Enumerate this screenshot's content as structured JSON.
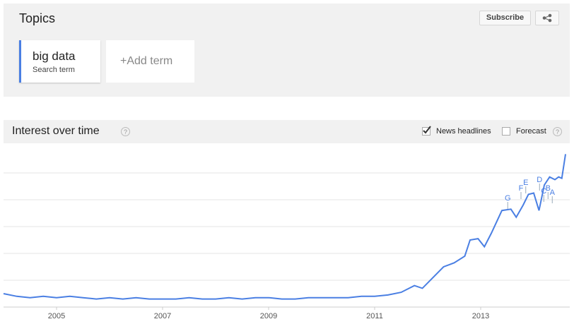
{
  "header": {
    "title": "Topics",
    "subscribe": "Subscribe"
  },
  "terms": [
    {
      "label": "big data",
      "sublabel": "Search term"
    }
  ],
  "add_term": "+Add term",
  "section": {
    "title": "Interest over time",
    "help": "?",
    "news_headlines": {
      "label": "News headlines",
      "checked": true
    },
    "forecast": {
      "label": "Forecast",
      "checked": false
    }
  },
  "chart_data": {
    "type": "line",
    "x": [
      2004.0,
      2004.25,
      2004.5,
      2004.75,
      2005.0,
      2005.25,
      2005.5,
      2005.75,
      2006.0,
      2006.25,
      2006.5,
      2006.75,
      2007.0,
      2007.25,
      2007.5,
      2007.75,
      2008.0,
      2008.25,
      2008.5,
      2008.75,
      2009.0,
      2009.25,
      2009.5,
      2009.75,
      2010.0,
      2010.25,
      2010.5,
      2010.75,
      2011.0,
      2011.25,
      2011.5,
      2011.75,
      2011.9,
      2012.1,
      2012.3,
      2012.5,
      2012.7,
      2012.8,
      2012.95,
      2013.07,
      2013.2,
      2013.4,
      2013.57,
      2013.67,
      2013.8,
      2013.9,
      2014.0,
      2014.1,
      2014.2,
      2014.3,
      2014.4,
      2014.47,
      2014.53,
      2014.6
    ],
    "series": [
      {
        "name": "big data",
        "color": "#4a7fe3",
        "values": [
          10,
          8,
          7,
          8,
          7,
          8,
          7,
          6,
          7,
          6,
          7,
          6,
          6,
          6,
          7,
          6,
          6,
          7,
          6,
          7,
          7,
          6,
          6,
          7,
          7,
          7,
          7,
          8,
          8,
          9,
          11,
          16,
          14,
          22,
          30,
          33,
          38,
          50,
          51,
          45,
          55,
          72,
          73,
          67,
          76,
          84,
          85,
          72,
          91,
          97,
          95,
          97,
          96,
          114
        ]
      }
    ],
    "xlim": [
      2004,
      2014.68
    ],
    "xticks": [
      2005,
      2007,
      2009,
      2011,
      2013
    ],
    "ylim": [
      0,
      122
    ],
    "yticks": [
      20,
      40,
      60,
      80,
      100
    ],
    "grid": true,
    "annotations": [
      {
        "label": "G",
        "x": 2013.51
      },
      {
        "label": "F",
        "x": 2013.76
      },
      {
        "label": "E",
        "x": 2013.85
      },
      {
        "label": "D",
        "x": 2014.11
      },
      {
        "label": "C",
        "x": 2014.19
      },
      {
        "label": "B",
        "x": 2014.27
      },
      {
        "label": "A",
        "x": 2014.35
      }
    ]
  }
}
